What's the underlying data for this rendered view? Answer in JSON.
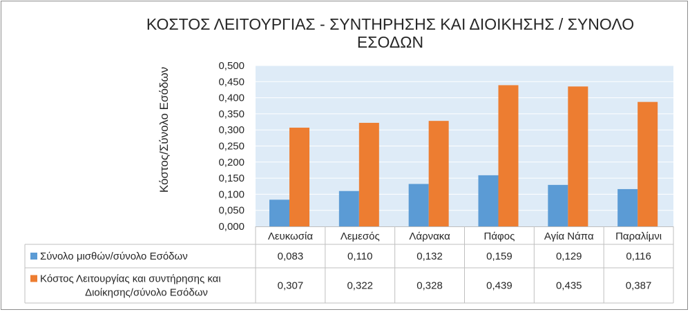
{
  "chart_data": {
    "type": "bar",
    "title": "ΚΟΣΤΟΣ ΛΕΙΤΟΥΡΓΙΑΣ  - ΣΥΝΤΗΡΗΣΗΣ ΚΑΙ ΔΙΟΙΚΗΣΗΣ / ΣΥΝΟΛΟ ΕΣΟΔΩΝ",
    "ylabel": "Κόστος/Σύνολο Εσόδων",
    "xlabel": "",
    "categories": [
      "Λευκωσία",
      "Λεμεσός",
      "Λάρνακα",
      "Πάφος",
      "Αγία Νάπα",
      "Παραλίμνι"
    ],
    "ylim": [
      0,
      0.5
    ],
    "yticks": [
      "0,000",
      "0,050",
      "0,100",
      "0,150",
      "0,200",
      "0,250",
      "0,300",
      "0,350",
      "0,400",
      "0,450",
      "0,500"
    ],
    "grid": true,
    "legend": "data-table",
    "series": [
      {
        "name": "Σύνολο μισθών/σύνολο Εσόδων",
        "name_lines": [
          "Σύνολο μισθών/σύνολο Εσόδων"
        ],
        "color": "#5b9bd5",
        "values": [
          0.083,
          0.11,
          0.132,
          0.159,
          0.129,
          0.116
        ],
        "labels": [
          "0,083",
          "0,110",
          "0,132",
          "0,159",
          "0,129",
          "0,116"
        ]
      },
      {
        "name": "Κόστος Λειτουργίας και συντήρησης και Διοίκησης/σύνολο Εσόδων",
        "name_lines": [
          "Κόστος Λειτουργίας και συντήρησης και",
          "Διοίκησης/σύνολο Εσόδων"
        ],
        "color": "#ed7d31",
        "values": [
          0.307,
          0.322,
          0.328,
          0.439,
          0.435,
          0.387
        ],
        "labels": [
          "0,307",
          "0,322",
          "0,328",
          "0,439",
          "0,435",
          "0,387"
        ]
      }
    ],
    "plot_background": "#deebf7",
    "gridline_color": "#ffffff"
  }
}
